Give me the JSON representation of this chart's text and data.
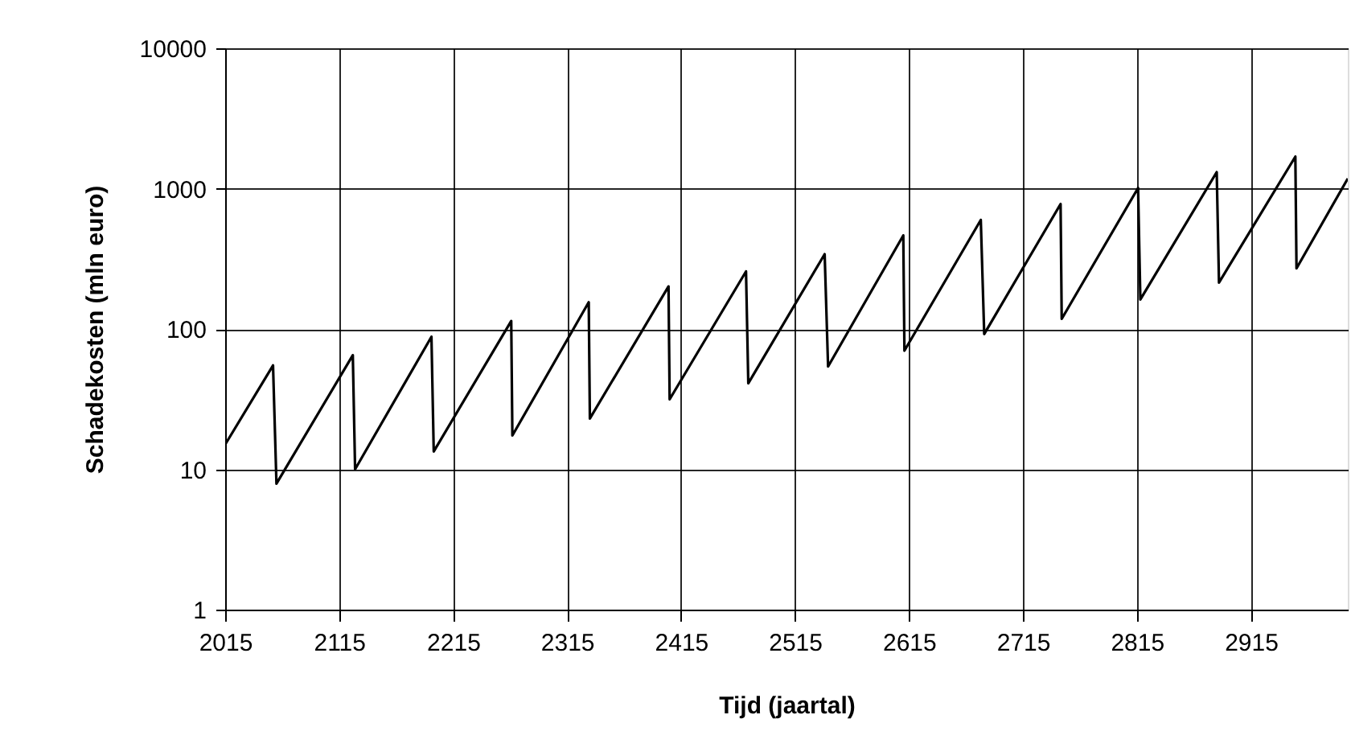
{
  "chart_data": {
    "type": "line",
    "xlabel": "Tijd (jaartal)",
    "ylabel": "Schadekosten (mln euro)",
    "log": "y",
    "grid": true,
    "marker": "none",
    "line_style": "solid",
    "xlim": [
      2015,
      3000
    ],
    "xticks": [
      2015,
      2115,
      2215,
      2315,
      2415,
      2515,
      2615,
      2715,
      2815,
      2915
    ],
    "ylim": [
      1,
      10000
    ],
    "yticks": [
      1,
      10,
      100,
      1000,
      10000
    ],
    "series": [
      {
        "color": "#000000",
        "x": [
          2015,
          2057,
          2060,
          2127,
          2129,
          2196,
          2198,
          2266,
          2267,
          2334,
          2335,
          2404,
          2405,
          2472,
          2474,
          2541,
          2544,
          2610,
          2611,
          2678,
          2681,
          2748,
          2749,
          2816,
          2818,
          2885,
          2887,
          2954,
          2955,
          3000
        ],
        "values": [
          15,
          55,
          7.9,
          65,
          10,
          88,
          13.4,
          114,
          17.4,
          155,
          23,
          201,
          31.5,
          257,
          41,
          341,
          54,
          464,
          70,
          598,
          92,
          776,
          118,
          1010,
          162,
          1310,
          214,
          1690,
          270,
          1180
        ]
      }
    ]
  }
}
